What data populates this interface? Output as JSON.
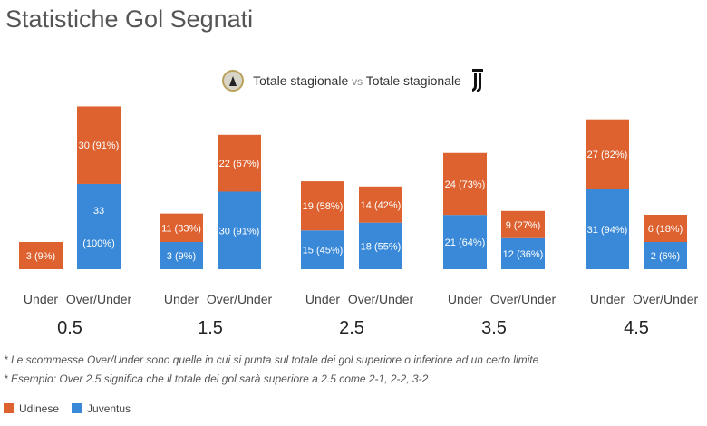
{
  "title": "Statistiche Gol Segnati",
  "subtitle": {
    "left": "Totale stagionale",
    "vs": "vs",
    "right": "Totale stagionale"
  },
  "chart_data": {
    "type": "bar",
    "stacked": true,
    "thresholds": [
      "0.5",
      "1.5",
      "2.5",
      "3.5",
      "4.5"
    ],
    "categories": [
      "Under",
      "Over/Under"
    ],
    "colors": {
      "Udinese": "#dd6230",
      "Juventus": "#3a89d8"
    },
    "bars": [
      {
        "threshold": "0.5",
        "category": "Under",
        "Udinese": {
          "v": 3,
          "label": "3 (9%)"
        },
        "Juventus": {
          "v": 0,
          "label": ""
        }
      },
      {
        "threshold": "0.5",
        "category": "Over/Under",
        "Udinese": {
          "v": 30,
          "label": "30 (91%)"
        },
        "Juventus": {
          "v": 33,
          "label": "33\n(100%)"
        }
      },
      {
        "threshold": "1.5",
        "category": "Under",
        "Udinese": {
          "v": 11,
          "label": "11 (33%)"
        },
        "Juventus": {
          "v": 3,
          "label": "3 (9%)"
        }
      },
      {
        "threshold": "1.5",
        "category": "Over/Under",
        "Udinese": {
          "v": 22,
          "label": "22 (67%)"
        },
        "Juventus": {
          "v": 30,
          "label": "30 (91%)"
        }
      },
      {
        "threshold": "2.5",
        "category": "Under",
        "Udinese": {
          "v": 19,
          "label": "19 (58%)"
        },
        "Juventus": {
          "v": 15,
          "label": "15 (45%)"
        }
      },
      {
        "threshold": "2.5",
        "category": "Over/Under",
        "Udinese": {
          "v": 14,
          "label": "14 (42%)"
        },
        "Juventus": {
          "v": 18,
          "label": "18 (55%)"
        }
      },
      {
        "threshold": "3.5",
        "category": "Under",
        "Udinese": {
          "v": 24,
          "label": "24 (73%)"
        },
        "Juventus": {
          "v": 21,
          "label": "21 (64%)"
        }
      },
      {
        "threshold": "3.5",
        "category": "Over/Under",
        "Udinese": {
          "v": 9,
          "label": "9 (27%)"
        },
        "Juventus": {
          "v": 12,
          "label": "12 (36%)"
        }
      },
      {
        "threshold": "4.5",
        "category": "Under",
        "Udinese": {
          "v": 27,
          "label": "27 (82%)"
        },
        "Juventus": {
          "v": 31,
          "label": "31 (94%)"
        }
      },
      {
        "threshold": "4.5",
        "category": "Over/Under",
        "Udinese": {
          "v": 6,
          "label": "6 (18%)"
        },
        "Juventus": {
          "v": 2,
          "label": "2 (6%)"
        }
      }
    ],
    "legend": [
      "Udinese",
      "Juventus"
    ],
    "legend_position": "bottom-left"
  },
  "notes": [
    "* Le scommesse Over/Under sono quelle in cui si punta sul totale dei gol superiore o inferiore ad un certo limite",
    "* Esempio: Over 2.5 significa che il totale dei gol sarà superiore a 2.5 come 2-1, 2-2, 3-2"
  ]
}
